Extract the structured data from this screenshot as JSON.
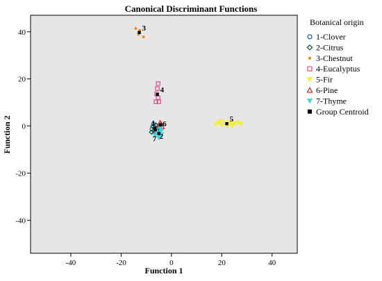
{
  "chart_data": {
    "type": "scatter",
    "title": "Canonical Discriminant Functions",
    "xlabel": "Function 1",
    "ylabel": "Function 2",
    "xlim": [
      -56,
      50
    ],
    "ylim": [
      -54,
      47
    ],
    "xticks": [
      -40,
      -20,
      0,
      20,
      40
    ],
    "yticks": [
      -40,
      -20,
      0,
      20,
      40
    ],
    "tick_labels_x": [
      "-40",
      "-20",
      "0",
      "20",
      "40"
    ],
    "tick_labels_y": [
      "-40",
      "-20",
      "0",
      "20",
      "40"
    ],
    "grid": false,
    "plot_background": "#e6e6e6",
    "legend": {
      "title": "Botanical origin",
      "placement": "right"
    },
    "series": [
      {
        "name": "1-Clover",
        "marker": "circle",
        "color": "#2e5ea8",
        "points": [
          [
            -7.2,
            0.8
          ],
          [
            -6.6,
            -0.6
          ],
          [
            -7.8,
            -1.4
          ],
          [
            -6.0,
            0.2
          ],
          [
            -6.9,
            -2.2
          ],
          [
            -5.4,
            -0.9
          ]
        ]
      },
      {
        "name": "2-Citrus",
        "marker": "diamond",
        "color": "#0f5f3a",
        "points": [
          [
            -6.6,
            -1.1
          ],
          [
            -7.4,
            -0.2
          ],
          [
            -5.8,
            -1.9
          ],
          [
            -6.2,
            0.4
          ],
          [
            -7.9,
            -2.6
          ],
          [
            -5.2,
            -0.4
          ],
          [
            -6.7,
            -3.0
          ]
        ]
      },
      {
        "name": "3-Chestnut",
        "marker": "circle",
        "color": "#f08a24",
        "points": [
          [
            -14.2,
            41.4
          ],
          [
            -12.6,
            40.6
          ],
          [
            -11.1,
            37.8
          ],
          [
            -13.1,
            38.9
          ]
        ]
      },
      {
        "name": "4-Eucalyptus",
        "marker": "square",
        "color": "#d94c8b",
        "points": [
          [
            -5.3,
            18.0
          ],
          [
            -5.6,
            15.9
          ],
          [
            -6.2,
            10.3
          ],
          [
            -5.0,
            10.3
          ],
          [
            -5.9,
            13.6
          ],
          [
            -5.3,
            12.0
          ]
        ]
      },
      {
        "name": "5-Fir",
        "marker": "triangle-down",
        "color": "#f4ee36",
        "points": [
          [
            17.6,
            0.6
          ],
          [
            18.8,
            1.4
          ],
          [
            20.2,
            0.3
          ],
          [
            21.6,
            1.6
          ],
          [
            22.7,
            0.8
          ],
          [
            23.8,
            1.9
          ],
          [
            25.0,
            0.9
          ],
          [
            26.3,
            1.4
          ],
          [
            27.6,
            0.9
          ],
          [
            19.6,
            1.9
          ],
          [
            22.3,
            0.0
          ],
          [
            24.3,
            0.2
          ]
        ]
      },
      {
        "name": "6-Pine",
        "marker": "triangle",
        "color": "#c0352e",
        "points": [
          [
            -4.1,
            0.9
          ],
          [
            -4.9,
            0.2
          ],
          [
            -3.7,
            -0.4
          ],
          [
            -4.5,
            1.4
          ]
        ]
      },
      {
        "name": "7-Thyme",
        "marker": "triangle-down",
        "color": "#3fd4e0",
        "points": [
          [
            -5.6,
            -3.1
          ],
          [
            -4.7,
            -4.3
          ],
          [
            -6.1,
            -1.6
          ],
          [
            -4.2,
            -2.4
          ],
          [
            -5.0,
            -5.1
          ],
          [
            -3.9,
            -3.6
          ],
          [
            -6.5,
            -3.9
          ],
          [
            -4.4,
            -1.1
          ]
        ]
      }
    ],
    "centroids": {
      "name": "Group Centroid",
      "marker": "square",
      "color": "#000000",
      "points": [
        {
          "label": "1",
          "x": -6.6,
          "y": -1.0
        },
        {
          "label": "2",
          "x": -6.4,
          "y": -1.6
        },
        {
          "label": "3",
          "x": -12.8,
          "y": 39.7
        },
        {
          "label": "4",
          "x": -5.6,
          "y": 13.4
        },
        {
          "label": "5",
          "x": 22.0,
          "y": 1.0
        },
        {
          "label": "6",
          "x": -4.3,
          "y": 0.5
        },
        {
          "label": "7",
          "x": -5.0,
          "y": -3.2
        }
      ]
    }
  }
}
